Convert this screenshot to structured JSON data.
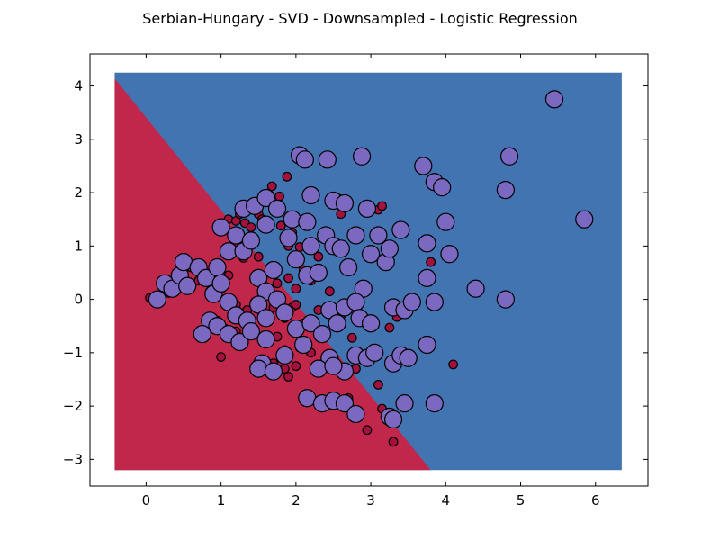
{
  "chart_data": {
    "type": "scatter",
    "title": "Serbian-Hungary - SVD - Downsampled - Logistic Regression",
    "xlabel": "",
    "ylabel": "",
    "xlim": [
      -0.75,
      6.7
    ],
    "ylim": [
      -3.5,
      4.6
    ],
    "xticks": [
      0,
      1,
      2,
      3,
      4,
      5,
      6
    ],
    "yticks": [
      -3,
      -2,
      -1,
      0,
      1,
      2,
      3,
      4
    ],
    "grid": false,
    "legend": "none",
    "decision_region": {
      "x_range": [
        -0.42,
        6.35
      ],
      "y_range": [
        -3.2,
        4.25
      ],
      "boundary": [
        [
          -0.42,
          4.14
        ],
        [
          3.8,
          -3.2
        ]
      ],
      "regions": [
        {
          "class": "Serbian",
          "side": "lower-left",
          "color": "#c1274a"
        },
        {
          "class": "Hungary",
          "side": "upper-right",
          "color": "#4174b1"
        }
      ]
    },
    "series": [
      {
        "class": "Serbian",
        "color": "#a3123f",
        "marker_size": "small",
        "points": [
          [
            0.05,
            0.03
          ],
          [
            0.28,
            0.36
          ],
          [
            0.3,
            0.12
          ],
          [
            0.6,
            0.6
          ],
          [
            0.75,
            0.6
          ],
          [
            0.7,
            0.35
          ],
          [
            0.85,
            0.15
          ],
          [
            0.95,
            0.25
          ],
          [
            1.0,
            0.2
          ],
          [
            1.1,
            0.45
          ],
          [
            1.1,
            1.5
          ],
          [
            1.2,
            1.47
          ],
          [
            1.25,
            1.6
          ],
          [
            1.32,
            1.43
          ],
          [
            1.4,
            1.35
          ],
          [
            1.5,
            1.6
          ],
          [
            1.55,
            1.5
          ],
          [
            1.65,
            1.95
          ],
          [
            1.68,
            2.12
          ],
          [
            1.78,
            1.93
          ],
          [
            1.88,
            2.3
          ],
          [
            1.8,
            1.38
          ],
          [
            1.9,
            1.0
          ],
          [
            1.95,
            1.25
          ],
          [
            2.05,
            0.98
          ],
          [
            1.2,
            1.05
          ],
          [
            1.3,
            0.78
          ],
          [
            1.5,
            0.8
          ],
          [
            1.7,
            0.55
          ],
          [
            1.75,
            0.3
          ],
          [
            1.6,
            0.2
          ],
          [
            1.9,
            0.4
          ],
          [
            2.0,
            0.2
          ],
          [
            2.1,
            0.55
          ],
          [
            2.2,
            0.35
          ],
          [
            2.3,
            0.8
          ],
          [
            2.45,
            0.15
          ],
          [
            1.05,
            0.0
          ],
          [
            1.2,
            -0.1
          ],
          [
            1.35,
            -0.2
          ],
          [
            1.45,
            -0.05
          ],
          [
            1.55,
            -0.3
          ],
          [
            1.7,
            -0.15
          ],
          [
            1.85,
            -0.35
          ],
          [
            1.95,
            -0.15
          ],
          [
            2.1,
            -0.45
          ],
          [
            2.3,
            -0.2
          ],
          [
            2.0,
            -0.1
          ],
          [
            0.95,
            -0.4
          ],
          [
            1.05,
            -0.55
          ],
          [
            1.2,
            -0.6
          ],
          [
            1.3,
            -0.75
          ],
          [
            1.45,
            -0.65
          ],
          [
            1.6,
            -0.8
          ],
          [
            1.75,
            -0.7
          ],
          [
            1.85,
            -0.95
          ],
          [
            2.05,
            -0.9
          ],
          [
            2.2,
            -1.0
          ],
          [
            1.7,
            -1.2
          ],
          [
            1.75,
            -1.35
          ],
          [
            1.85,
            -1.3
          ],
          [
            1.9,
            -1.45
          ],
          [
            2.0,
            -1.25
          ],
          [
            1.0,
            -1.08
          ],
          [
            2.55,
            1.9
          ],
          [
            2.6,
            1.6
          ],
          [
            2.7,
            0.62
          ],
          [
            3.1,
            1.68
          ],
          [
            3.15,
            1.75
          ],
          [
            2.45,
            -1.9
          ],
          [
            2.7,
            -1.85
          ],
          [
            2.6,
            -0.3
          ],
          [
            2.75,
            -0.72
          ],
          [
            2.8,
            -1.3
          ],
          [
            2.95,
            -2.45
          ],
          [
            3.1,
            -1.6
          ],
          [
            3.15,
            -2.05
          ],
          [
            3.25,
            -0.53
          ],
          [
            3.35,
            -0.33
          ],
          [
            3.3,
            -2.67
          ],
          [
            3.8,
            0.7
          ],
          [
            4.1,
            -1.22
          ]
        ]
      },
      {
        "class": "Hungary",
        "color": "#7b68c0",
        "marker_size": "large",
        "points": [
          [
            0.15,
            0.0
          ],
          [
            0.25,
            0.3
          ],
          [
            0.35,
            0.2
          ],
          [
            0.45,
            0.45
          ],
          [
            0.5,
            0.7
          ],
          [
            0.55,
            0.25
          ],
          [
            0.7,
            0.6
          ],
          [
            0.8,
            0.4
          ],
          [
            0.9,
            0.1
          ],
          [
            0.95,
            0.6
          ],
          [
            0.85,
            -0.4
          ],
          [
            0.95,
            -0.5
          ],
          [
            0.75,
            -0.65
          ],
          [
            1.0,
            1.35
          ],
          [
            1.1,
            0.9
          ],
          [
            1.2,
            1.2
          ],
          [
            1.3,
            0.9
          ],
          [
            1.4,
            1.1
          ],
          [
            1.5,
            0.4
          ],
          [
            1.6,
            0.15
          ],
          [
            1.7,
            0.55
          ],
          [
            1.3,
            1.7
          ],
          [
            1.45,
            1.75
          ],
          [
            1.6,
            1.4
          ],
          [
            1.6,
            1.9
          ],
          [
            1.75,
            1.7
          ],
          [
            1.9,
            1.15
          ],
          [
            1.95,
            1.5
          ],
          [
            2.15,
            1.45
          ],
          [
            2.2,
            1.95
          ],
          [
            2.05,
            2.7
          ],
          [
            2.12,
            2.62
          ],
          [
            2.42,
            2.62
          ],
          [
            2.88,
            2.68
          ],
          [
            2.0,
            0.75
          ],
          [
            2.15,
            0.45
          ],
          [
            2.2,
            1.0
          ],
          [
            2.3,
            0.5
          ],
          [
            2.4,
            1.2
          ],
          [
            2.5,
            1.0
          ],
          [
            2.5,
            1.85
          ],
          [
            2.65,
            1.8
          ],
          [
            2.6,
            0.95
          ],
          [
            2.7,
            0.6
          ],
          [
            2.8,
            1.2
          ],
          [
            2.9,
            0.2
          ],
          [
            2.95,
            1.7
          ],
          [
            3.0,
            0.85
          ],
          [
            3.1,
            1.2
          ],
          [
            3.2,
            0.7
          ],
          [
            3.25,
            0.95
          ],
          [
            3.4,
            1.3
          ],
          [
            3.3,
            -0.15
          ],
          [
            3.45,
            -0.2
          ],
          [
            3.55,
            -0.05
          ],
          [
            1.0,
            0.3
          ],
          [
            1.1,
            -0.05
          ],
          [
            1.2,
            -0.3
          ],
          [
            1.35,
            -0.4
          ],
          [
            1.5,
            -0.1
          ],
          [
            1.6,
            -0.35
          ],
          [
            1.75,
            0.0
          ],
          [
            1.85,
            -0.25
          ],
          [
            2.0,
            -0.55
          ],
          [
            2.2,
            -0.45
          ],
          [
            2.35,
            -0.65
          ],
          [
            2.45,
            -0.2
          ],
          [
            2.55,
            -0.45
          ],
          [
            2.65,
            -0.15
          ],
          [
            2.8,
            -0.05
          ],
          [
            2.85,
            -0.35
          ],
          [
            3.0,
            -0.45
          ],
          [
            1.1,
            -0.65
          ],
          [
            1.25,
            -0.8
          ],
          [
            1.4,
            -0.6
          ],
          [
            1.6,
            -0.75
          ],
          [
            2.1,
            -0.85
          ],
          [
            2.45,
            -1.1
          ],
          [
            2.65,
            -1.35
          ],
          [
            2.8,
            -1.05
          ],
          [
            2.95,
            -1.1
          ],
          [
            3.05,
            -1.0
          ],
          [
            3.3,
            -1.2
          ],
          [
            3.4,
            -1.05
          ],
          [
            3.5,
            -1.1
          ],
          [
            2.15,
            -1.85
          ],
          [
            2.35,
            -1.95
          ],
          [
            2.5,
            -1.9
          ],
          [
            2.65,
            -1.95
          ],
          [
            2.8,
            -2.15
          ],
          [
            3.25,
            -2.2
          ],
          [
            3.3,
            -2.25
          ],
          [
            3.45,
            -1.95
          ],
          [
            1.85,
            -1.05
          ],
          [
            1.55,
            -1.2
          ],
          [
            1.5,
            -1.3
          ],
          [
            1.7,
            -1.35
          ],
          [
            2.3,
            -1.3
          ],
          [
            2.5,
            -1.25
          ],
          [
            3.75,
            -0.85
          ],
          [
            3.85,
            -1.95
          ],
          [
            3.7,
            2.5
          ],
          [
            3.85,
            2.2
          ],
          [
            3.95,
            2.1
          ],
          [
            3.75,
            1.05
          ],
          [
            4.0,
            1.45
          ],
          [
            4.05,
            0.85
          ],
          [
            3.75,
            0.4
          ],
          [
            3.85,
            -0.05
          ],
          [
            4.4,
            0.2
          ],
          [
            4.8,
            0.0
          ],
          [
            4.8,
            2.05
          ],
          [
            4.85,
            2.68
          ],
          [
            5.45,
            3.75
          ],
          [
            5.85,
            1.5
          ]
        ]
      }
    ]
  }
}
